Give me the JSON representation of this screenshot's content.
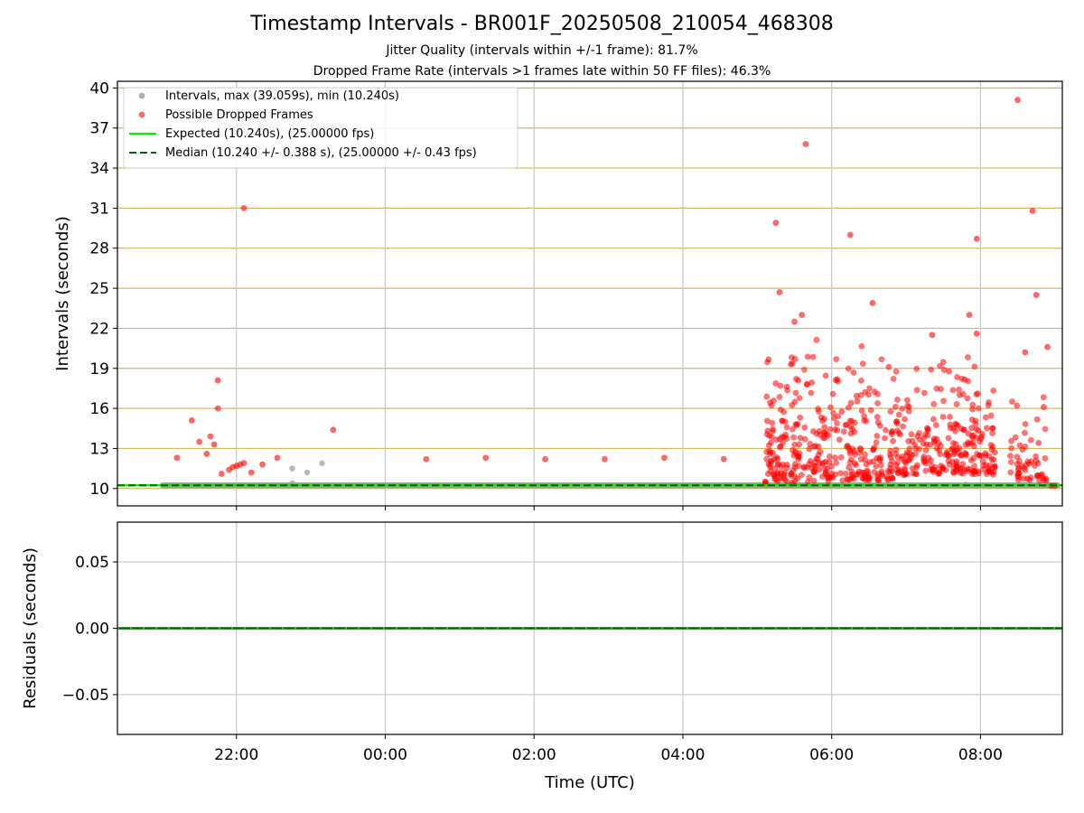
{
  "title": "Timestamp Intervals - BR001F_20250508_210054_468308",
  "subtitle_1": "Jitter Quality (intervals within +/-1 frame): 81.7%",
  "subtitle_2": "Dropped Frame Rate (intervals >1 frames late within 50 FF files): 46.3%",
  "colors": {
    "intervals": "#9a9a9a",
    "dropped": "#ff0000",
    "expected": "#00ee00",
    "median": "#006400",
    "hgrid_top": "#d4b860",
    "grid": "#c8c8c8"
  },
  "chart_data": [
    {
      "type": "scatter",
      "xlabel": "",
      "ylabel": "Intervals (seconds)",
      "x_unit": "hours relative to 00:00 UTC on 2025-05-09 (negative = 2025-05-08)",
      "xlim": [
        -3.6,
        9.1
      ],
      "ylim": [
        8.7,
        40.5
      ],
      "yticks": [
        10,
        13,
        16,
        19,
        22,
        25,
        28,
        31,
        34,
        37,
        40
      ],
      "xticks": [
        -2,
        0,
        2,
        4,
        6,
        8
      ],
      "xtick_labels": [
        "22:00",
        "00:00",
        "02:00",
        "04:00",
        "06:00",
        "08:00"
      ],
      "grid": true,
      "legend_position": "top-left",
      "legend": [
        "Intervals, max (39.059s), min (10.240s)",
        "Possible Dropped Frames",
        "Expected (10.240s), (25.00000 fps)",
        "Median (10.240 +/- 0.388 s), (25.00000 +/- 0.43 fps)"
      ],
      "expected_value": 10.24,
      "median_value": 10.24,
      "series": [
        {
          "name": "Intervals, max (39.059s), min (10.240s)",
          "note": "dense band at 10.24 s from about 21:00 to 09:05",
          "band": {
            "y": 10.24,
            "x_from": -3.0,
            "x_to": 9.05
          },
          "points": [
            [
              -1.25,
              11.5
            ],
            [
              -1.05,
              11.2
            ],
            [
              -0.85,
              11.9
            ],
            [
              -1.25,
              10.4
            ],
            [
              7.8,
              10.3
            ],
            [
              8.9,
              10.3
            ]
          ]
        },
        {
          "name": "Possible Dropped Frames",
          "note": "scattered points; the dense 05:05-09:05 region is approximated",
          "points": [
            [
              -2.8,
              12.3
            ],
            [
              -2.6,
              15.1
            ],
            [
              -2.5,
              13.5
            ],
            [
              -2.4,
              12.6
            ],
            [
              -2.35,
              13.9
            ],
            [
              -2.3,
              13.3
            ],
            [
              -2.25,
              18.1
            ],
            [
              -2.25,
              16.0
            ],
            [
              -2.2,
              11.1
            ],
            [
              -2.1,
              11.4
            ],
            [
              -2.05,
              11.6
            ],
            [
              -2.0,
              11.7
            ],
            [
              -1.95,
              11.8
            ],
            [
              -1.9,
              11.9
            ],
            [
              -1.9,
              31.0
            ],
            [
              -1.8,
              11.2
            ],
            [
              -1.65,
              11.8
            ],
            [
              -1.45,
              12.3
            ],
            [
              -0.7,
              14.4
            ],
            [
              0.55,
              12.2
            ],
            [
              1.35,
              12.3
            ],
            [
              2.15,
              12.2
            ],
            [
              2.95,
              12.2
            ],
            [
              3.75,
              12.3
            ],
            [
              4.55,
              12.2
            ],
            [
              5.25,
              29.9
            ],
            [
              5.3,
              24.7
            ],
            [
              5.5,
              22.5
            ],
            [
              5.65,
              35.8
            ],
            [
              5.6,
              23.0
            ],
            [
              6.25,
              29.0
            ],
            [
              6.55,
              23.9
            ],
            [
              7.35,
              21.5
            ],
            [
              7.85,
              23.0
            ],
            [
              7.95,
              21.6
            ],
            [
              7.95,
              28.7
            ],
            [
              8.5,
              39.1
            ],
            [
              8.7,
              30.8
            ],
            [
              8.75,
              24.5
            ],
            [
              8.6,
              20.2
            ],
            [
              8.9,
              20.6
            ],
            [
              8.85,
              16.1
            ],
            [
              9.0,
              10.2
            ],
            [
              8.95,
              10.2
            ]
          ],
          "dense_clusters": [
            {
              "x": [
                5.1,
                5.85
              ],
              "y": [
                10.3,
                22.5
              ],
              "count": 160
            },
            {
              "x": [
                5.85,
                6.85
              ],
              "y": [
                10.5,
                21.0
              ],
              "count": 180
            },
            {
              "x": [
                6.85,
                8.2
              ],
              "y": [
                11.0,
                20.5
              ],
              "count": 260
            },
            {
              "x": [
                8.4,
                8.9
              ],
              "y": [
                10.5,
                18.5
              ],
              "count": 55
            }
          ]
        }
      ]
    },
    {
      "type": "line",
      "xlabel": "Time (UTC)",
      "ylabel": "Residuals (seconds)",
      "xlim": [
        -3.6,
        9.1
      ],
      "ylim": [
        -0.08,
        0.08
      ],
      "yticks": [
        0.05,
        0.0,
        -0.05
      ],
      "ytick_labels": [
        "0.05",
        "0.00",
        "−0.05"
      ],
      "xticks": [
        -2,
        0,
        2,
        4,
        6,
        8
      ],
      "xtick_labels": [
        "22:00",
        "00:00",
        "02:00",
        "04:00",
        "06:00",
        "08:00"
      ],
      "grid": true,
      "series": [
        {
          "name": "",
          "note": "residuals flat at 0.00 across the full range",
          "x": [
            -3.6,
            9.1
          ],
          "values": [
            0.0,
            0.0
          ]
        }
      ]
    }
  ]
}
